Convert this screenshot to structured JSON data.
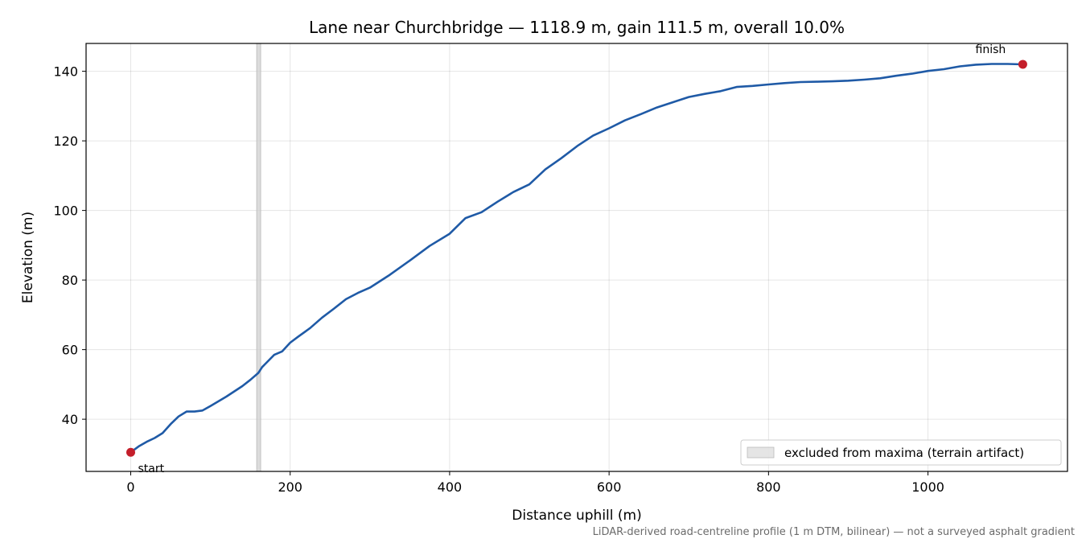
{
  "chart_data": {
    "type": "line",
    "title": "Lane near Churchbridge — 1118.9 m, gain 111.5 m, overall 10.0%",
    "xlabel": "Distance uphill (m)",
    "ylabel": "Elevation (m)",
    "xlim": [
      -56,
      1175
    ],
    "ylim": [
      25,
      148
    ],
    "xticks": [
      0,
      200,
      400,
      600,
      800,
      1000
    ],
    "yticks": [
      40,
      60,
      80,
      100,
      120,
      140
    ],
    "grid": true,
    "line_color": "#1f5aa6",
    "marker_color": "#c41e2a",
    "series": [
      {
        "x": [
          0,
          10,
          20,
          30,
          40,
          50,
          60,
          70,
          80,
          90,
          100,
          120,
          140,
          150,
          160,
          165,
          170,
          180,
          190,
          200,
          210,
          225,
          240,
          255,
          270,
          285,
          300,
          325,
          350,
          375,
          400,
          420,
          440,
          460,
          480,
          500,
          520,
          540,
          560,
          580,
          600,
          620,
          640,
          660,
          680,
          700,
          720,
          740,
          760,
          780,
          800,
          820,
          840,
          860,
          880,
          900,
          920,
          940,
          960,
          980,
          1000,
          1020,
          1040,
          1060,
          1080,
          1100,
          1118.9
        ],
        "y": [
          30.5,
          32.2,
          33.5,
          34.6,
          36.0,
          38.6,
          40.8,
          42.2,
          42.2,
          42.5,
          43.8,
          46.5,
          49.5,
          51.3,
          53.3,
          55.0,
          56.2,
          58.5,
          59.5,
          62.0,
          63.7,
          66.2,
          69.2,
          71.8,
          74.5,
          76.3,
          77.8,
          81.5,
          85.6,
          89.8,
          93.3,
          97.8,
          99.5,
          102.5,
          105.3,
          107.5,
          111.8,
          115.0,
          118.5,
          121.5,
          123.6,
          125.9,
          127.7,
          129.6,
          131.1,
          132.6,
          133.5,
          134.3,
          135.5,
          135.8,
          136.2,
          136.6,
          136.9,
          137.0,
          137.1,
          137.3,
          137.6,
          138.0,
          138.7,
          139.3,
          140.1,
          140.6,
          141.4,
          141.9,
          142.1,
          142.1,
          142.0
        ]
      }
    ],
    "points": [
      {
        "x": 0,
        "y": 30.5,
        "label": "start"
      },
      {
        "x": 1118.9,
        "y": 142.0,
        "label": "finish"
      }
    ],
    "excluded_band": {
      "x0": 158,
      "x1": 163,
      "color": "#d0d0d0"
    },
    "legend": {
      "position": "lower-right",
      "label": "excluded from maxima (terrain artifact)"
    },
    "footnote": "LiDAR-derived road-centreline profile (1 m DTM, bilinear) — not a surveyed asphalt gradient"
  }
}
